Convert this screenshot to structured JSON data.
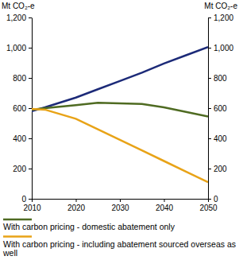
{
  "chart_data": {
    "type": "line",
    "ylabel": "Mt CO₂-e",
    "y2label": "Mt CO₂-e",
    "x": [
      2010,
      2013,
      2020,
      2025,
      2030,
      2035,
      2040,
      2045,
      2050
    ],
    "series": [
      {
        "color": "#1c2a78",
        "values": [
          580,
          605,
          670,
          725,
          780,
          835,
          895,
          950,
          1005
        ]
      },
      {
        "name": "With carbon pricing - domestic abatement only",
        "color": "#4f6b22",
        "values": [
          590,
          600,
          620,
          635,
          632,
          628,
          605,
          575,
          545
        ]
      },
      {
        "name": "With carbon pricing - including abatement sourced overseas as well",
        "color": "#e8a317",
        "values": [
          595,
          590,
          530,
          460,
          390,
          320,
          250,
          180,
          110
        ]
      }
    ],
    "xlim": [
      2010,
      2050
    ],
    "xticks": [
      2010,
      2020,
      2030,
      2040,
      2050
    ],
    "ylim": [
      0,
      1200
    ],
    "yticks": [
      0,
      200,
      400,
      600,
      800,
      {
        "value": 1000,
        "label": "1,000"
      },
      {
        "value": 1200,
        "label": "1,200"
      }
    ],
    "y2lim": [
      0,
      1200
    ],
    "y2ticks": [
      0,
      200,
      400,
      600,
      800,
      {
        "value": 1000,
        "label": "1,000"
      },
      {
        "value": 1200,
        "label": "1,200"
      }
    ],
    "grid": false,
    "legend": "bottom"
  }
}
